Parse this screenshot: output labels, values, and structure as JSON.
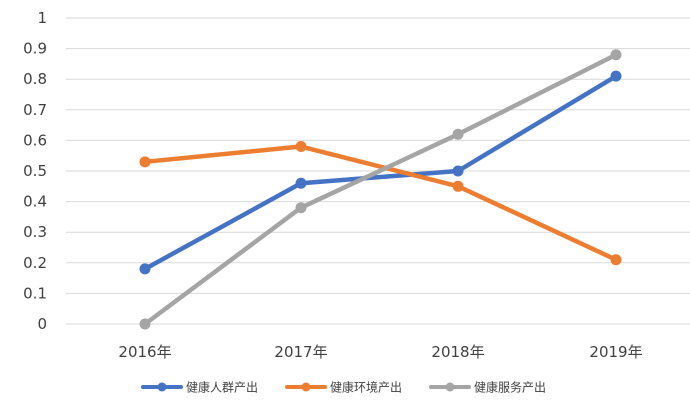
{
  "chart_data": {
    "type": "line",
    "title": "",
    "xlabel": "",
    "ylabel": "",
    "categories": [
      "2016年",
      "2017年",
      "2018年",
      "2019年"
    ],
    "ylim": [
      0,
      1
    ],
    "yticks": [
      "0",
      "0.1",
      "0.2",
      "0.3",
      "0.4",
      "0.5",
      "0.6",
      "0.7",
      "0.8",
      "0.9",
      "1"
    ],
    "grid": "horizontal",
    "legend_position": "bottom",
    "series": [
      {
        "name": "健康人群产出",
        "color": "#4472c4",
        "values": [
          0.18,
          0.46,
          0.5,
          0.81
        ]
      },
      {
        "name": "健康环境产出",
        "color": "#ed7d31",
        "values": [
          0.53,
          0.58,
          0.45,
          0.21
        ]
      },
      {
        "name": "健康服务产出",
        "color": "#a5a5a5",
        "values": [
          0.0,
          0.38,
          0.62,
          0.88
        ]
      }
    ]
  }
}
